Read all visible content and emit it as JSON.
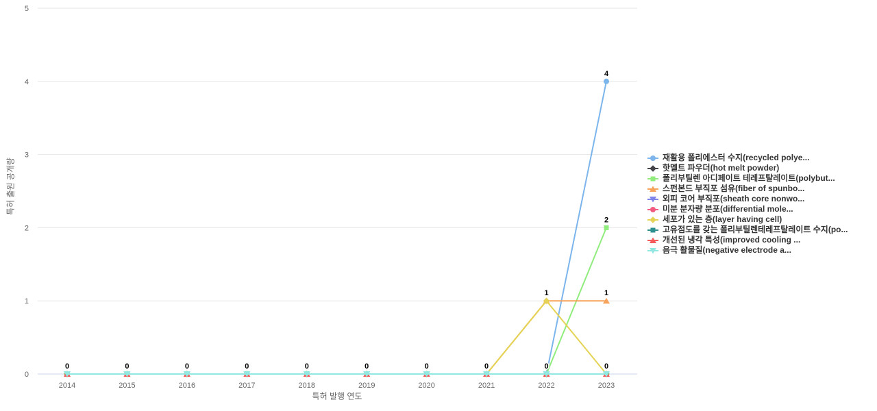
{
  "chart_data": {
    "type": "line",
    "title": "",
    "xlabel": "특허 발행 연도",
    "ylabel": "특허 출원 공개량",
    "categories": [
      "2014",
      "2015",
      "2016",
      "2017",
      "2018",
      "2019",
      "2020",
      "2021",
      "2022",
      "2023"
    ],
    "yticks": [
      0,
      1,
      2,
      3,
      4,
      5
    ],
    "ylim": [
      0,
      5
    ],
    "grid": true,
    "legend_position": "right",
    "series": [
      {
        "name": "재활용 폴리에스터 수지(recycled polye...",
        "color": "#7cb5ec",
        "marker": "circle",
        "values": [
          0,
          0,
          0,
          0,
          0,
          0,
          0,
          0,
          0,
          4
        ]
      },
      {
        "name": "핫멜트 파우더(hot melt powder)",
        "color": "#434348",
        "marker": "diamond",
        "values": [
          0,
          0,
          0,
          0,
          0,
          0,
          0,
          0,
          0,
          0
        ]
      },
      {
        "name": "폴리부틸렌 아디페이트 테레프탈레이트(polybut...",
        "color": "#90ed7d",
        "marker": "square",
        "values": [
          0,
          0,
          0,
          0,
          0,
          0,
          0,
          0,
          0,
          2
        ]
      },
      {
        "name": "스펀본드 부직포 섬유(fiber of spunbo...",
        "color": "#f7a35c",
        "marker": "triangle",
        "values": [
          0,
          0,
          0,
          0,
          0,
          0,
          0,
          0,
          1,
          1
        ]
      },
      {
        "name": "외피 코어 부직포(sheath core nonwo...",
        "color": "#8085e9",
        "marker": "triangle-down",
        "values": [
          0,
          0,
          0,
          0,
          0,
          0,
          0,
          0,
          0,
          0
        ]
      },
      {
        "name": "미분 분자량 분포(differential mole...",
        "color": "#f15c80",
        "marker": "circle",
        "values": [
          0,
          0,
          0,
          0,
          0,
          0,
          0,
          0,
          0,
          0
        ]
      },
      {
        "name": "세포가 있는 층(layer having cell)",
        "color": "#e4d354",
        "marker": "diamond",
        "values": [
          0,
          0,
          0,
          0,
          0,
          0,
          0,
          0,
          1,
          0
        ]
      },
      {
        "name": "고유점도를 갖는 폴리부틸렌테레프탈레이트 수지(po...",
        "color": "#2b908f",
        "marker": "square",
        "values": [
          0,
          0,
          0,
          0,
          0,
          0,
          0,
          0,
          0,
          0
        ]
      },
      {
        "name": "개선된 냉각 특성(improved cooling ...",
        "color": "#f45b5b",
        "marker": "triangle",
        "values": [
          0,
          0,
          0,
          0,
          0,
          0,
          0,
          0,
          0,
          0
        ]
      },
      {
        "name": "음극 활물질(negative electrode a...",
        "color": "#91e8e1",
        "marker": "triangle-down",
        "values": [
          0,
          0,
          0,
          0,
          0,
          0,
          0,
          0,
          0,
          0
        ]
      }
    ]
  },
  "colors": {
    "background": "#ffffff",
    "gridline": "#e6e6e6",
    "axis_line": "#ccd6eb",
    "tick_label": "#666666",
    "axis_title": "#666666",
    "legend_text": "#333333",
    "data_label": "#000000",
    "data_label_outline": "#ffffff"
  }
}
